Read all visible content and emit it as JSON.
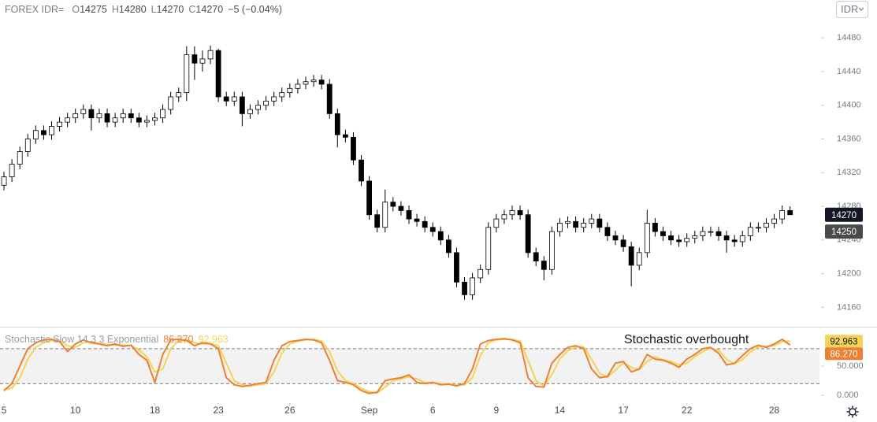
{
  "chart_data": [
    {
      "type": "candlestick",
      "symbol": "FOREX IDR=",
      "legend_fields": [
        {
          "label": "O",
          "value": 14275
        },
        {
          "label": "H",
          "value": 14280
        },
        {
          "label": "L",
          "value": 14270
        },
        {
          "label": "C",
          "value": 14270
        }
      ],
      "change": "−5 (−0.04%)",
      "currency_button": "IDR",
      "open": [
        14305,
        14315,
        14330,
        14345,
        14360,
        14370,
        14365,
        14375,
        14380,
        14385,
        14390,
        14395,
        14385,
        14390,
        14380,
        14385,
        14390,
        14385,
        14380,
        14382,
        14385,
        14395,
        14410,
        14415,
        14460,
        14450,
        14455,
        14465,
        14410,
        14405,
        14410,
        14390,
        14395,
        14400,
        14405,
        14410,
        14415,
        14420,
        14425,
        14428,
        14430,
        14425,
        14390,
        14365,
        14362,
        14335,
        14310,
        14270,
        14255,
        14285,
        14280,
        14275,
        14265,
        14262,
        14255,
        14250,
        14240,
        14225,
        14190,
        14175,
        14195,
        14205,
        14255,
        14265,
        14270,
        14275,
        14270,
        14225,
        14215,
        14205,
        14250,
        14260,
        14262,
        14255,
        14260,
        14265,
        14255,
        14245,
        14240,
        14232,
        14210,
        14225,
        14260,
        14250,
        14245,
        14240,
        14238,
        14242,
        14245,
        14250,
        14250,
        14245,
        14240,
        14238,
        14245,
        14255,
        14255,
        14260,
        14265,
        14275
      ],
      "high": [
        14321,
        14336,
        14351,
        14366,
        14376,
        14376,
        14381,
        14386,
        14391,
        14396,
        14401,
        14401,
        14396,
        14396,
        14391,
        14396,
        14396,
        14391,
        14388,
        14391,
        14401,
        14416,
        14421,
        14470,
        14470,
        14465,
        14471,
        14467,
        14416,
        14416,
        14416,
        14401,
        14406,
        14411,
        14416,
        14421,
        14426,
        14431,
        14434,
        14436,
        14436,
        14431,
        14396,
        14371,
        14368,
        14341,
        14316,
        14276,
        14300,
        14291,
        14286,
        14281,
        14271,
        14268,
        14261,
        14256,
        14246,
        14231,
        14196,
        14201,
        14211,
        14261,
        14271,
        14276,
        14281,
        14281,
        14276,
        14231,
        14221,
        14256,
        14266,
        14268,
        14268,
        14266,
        14271,
        14271,
        14261,
        14251,
        14246,
        14238,
        14231,
        14276,
        14266,
        14256,
        14251,
        14246,
        14248,
        14251,
        14256,
        14256,
        14256,
        14251,
        14246,
        14251,
        14261,
        14261,
        14266,
        14271,
        14281,
        14280
      ],
      "low": [
        14299,
        14309,
        14324,
        14339,
        14354,
        14359,
        14359,
        14369,
        14374,
        14379,
        14384,
        14370,
        14379,
        14374,
        14374,
        14379,
        14379,
        14374,
        14374,
        14376,
        14379,
        14389,
        14404,
        14405,
        14430,
        14440,
        14449,
        14404,
        14399,
        14399,
        14375,
        14384,
        14389,
        14394,
        14399,
        14404,
        14409,
        14414,
        14419,
        14422,
        14419,
        14384,
        14350,
        14356,
        14329,
        14304,
        14264,
        14249,
        14249,
        14274,
        14269,
        14259,
        14256,
        14249,
        14244,
        14234,
        14219,
        14184,
        14169,
        14169,
        14189,
        14199,
        14249,
        14259,
        14264,
        14264,
        14219,
        14209,
        14192,
        14199,
        14244,
        14254,
        14249,
        14249,
        14254,
        14249,
        14239,
        14234,
        14226,
        14185,
        14204,
        14219,
        14244,
        14239,
        14234,
        14232,
        14232,
        14236,
        14239,
        14244,
        14239,
        14225,
        14232,
        14232,
        14239,
        14249,
        14249,
        14254,
        14259,
        14270
      ],
      "close": [
        14315,
        14330,
        14345,
        14360,
        14370,
        14365,
        14375,
        14380,
        14385,
        14390,
        14395,
        14385,
        14390,
        14380,
        14385,
        14390,
        14385,
        14380,
        14382,
        14385,
        14395,
        14410,
        14415,
        14460,
        14450,
        14455,
        14465,
        14410,
        14405,
        14410,
        14390,
        14395,
        14400,
        14405,
        14410,
        14415,
        14420,
        14425,
        14428,
        14430,
        14425,
        14390,
        14365,
        14362,
        14335,
        14310,
        14270,
        14255,
        14285,
        14280,
        14275,
        14265,
        14262,
        14255,
        14250,
        14240,
        14225,
        14190,
        14175,
        14195,
        14205,
        14255,
        14265,
        14270,
        14275,
        14270,
        14225,
        14215,
        14205,
        14250,
        14260,
        14262,
        14255,
        14260,
        14265,
        14255,
        14245,
        14240,
        14232,
        14210,
        14225,
        14260,
        14250,
        14245,
        14240,
        14238,
        14242,
        14245,
        14250,
        14250,
        14245,
        14240,
        14238,
        14245,
        14255,
        14255,
        14260,
        14265,
        14275,
        14270
      ],
      "up_color": "#ffffff",
      "down_color": "#000000",
      "wick_color": "#000000",
      "xlim": [
        -0.5,
        102.7
      ],
      "ylim": [
        14137,
        14525
      ],
      "yticks": [
        14160,
        14200,
        14240,
        14280,
        14320,
        14360,
        14400,
        14440,
        14480
      ],
      "grid": false,
      "price_markers": [
        {
          "value": 14270,
          "color": "#131722"
        },
        {
          "value": 14250,
          "color": "#4a4a4a"
        }
      ]
    },
    {
      "type": "line",
      "title": "Stochastic Slow 14 3 3 Exponential",
      "annotation": "Stochastic overbought",
      "series": [
        {
          "color": "#ef7f33",
          "values": [
            8,
            20,
            50,
            80,
            90,
            95,
            96,
            92,
            75,
            88,
            95,
            90,
            88,
            85,
            88,
            84,
            86,
            70,
            60,
            22,
            70,
            95,
            96,
            94,
            85,
            90,
            88,
            80,
            30,
            18,
            15,
            17,
            20,
            22,
            60,
            85,
            92,
            94,
            96,
            95,
            90,
            60,
            25,
            22,
            18,
            8,
            3,
            5,
            25,
            28,
            30,
            35,
            22,
            20,
            22,
            18,
            19,
            16,
            20,
            45,
            88,
            94,
            96,
            97,
            95,
            90,
            30,
            15,
            14,
            55,
            70,
            82,
            85,
            80,
            45,
            30,
            32,
            55,
            58,
            40,
            45,
            70,
            62,
            60,
            55,
            48,
            62,
            70,
            80,
            82,
            72,
            52,
            55,
            68,
            80,
            86,
            82,
            88,
            96,
            86.27
          ],
          "last": {
            "value": 86.27,
            "label": "86.270"
          }
        },
        {
          "color": "#f6d356",
          "values": [
            10,
            12,
            30,
            62,
            82,
            90,
            94,
            94,
            85,
            82,
            90,
            92,
            89,
            87,
            86,
            86,
            85,
            78,
            66,
            40,
            45,
            80,
            93,
            95,
            90,
            88,
            89,
            85,
            55,
            25,
            18,
            16,
            18,
            20,
            40,
            72,
            88,
            93,
            95,
            96,
            93,
            75,
            42,
            25,
            20,
            12,
            6,
            4,
            14,
            25,
            28,
            32,
            28,
            22,
            21,
            20,
            19,
            18,
            18,
            30,
            68,
            90,
            95,
            96,
            96,
            93,
            60,
            25,
            16,
            35,
            62,
            76,
            83,
            83,
            62,
            38,
            31,
            43,
            56,
            48,
            44,
            58,
            66,
            61,
            58,
            52,
            55,
            66,
            75,
            81,
            77,
            62,
            54,
            61,
            74,
            83,
            84,
            85,
            92,
            92.963
          ],
          "last": {
            "value": 92.963,
            "label": "92.963"
          }
        }
      ],
      "levels": [
        20,
        80
      ],
      "band_color": "#f2f2f2",
      "xlim": [
        -0.5,
        102.7
      ],
      "ylim": [
        -13.5,
        117.6
      ],
      "yticks": [
        {
          "value": 0,
          "label": "0.000"
        },
        {
          "value": 50,
          "label": "50.000"
        }
      ],
      "xticks": [
        {
          "value": 0,
          "label": "5"
        },
        {
          "value": 9,
          "label": "10"
        },
        {
          "value": 19,
          "label": "18"
        },
        {
          "value": 27,
          "label": "23"
        },
        {
          "value": 36,
          "label": "26"
        },
        {
          "value": 46,
          "label": "Sep"
        },
        {
          "value": 54,
          "label": "6"
        },
        {
          "value": 62,
          "label": "9"
        },
        {
          "value": 70,
          "label": "14"
        },
        {
          "value": 78,
          "label": "17"
        },
        {
          "value": 86,
          "label": "22"
        },
        {
          "value": 97,
          "label": "28"
        }
      ]
    }
  ]
}
